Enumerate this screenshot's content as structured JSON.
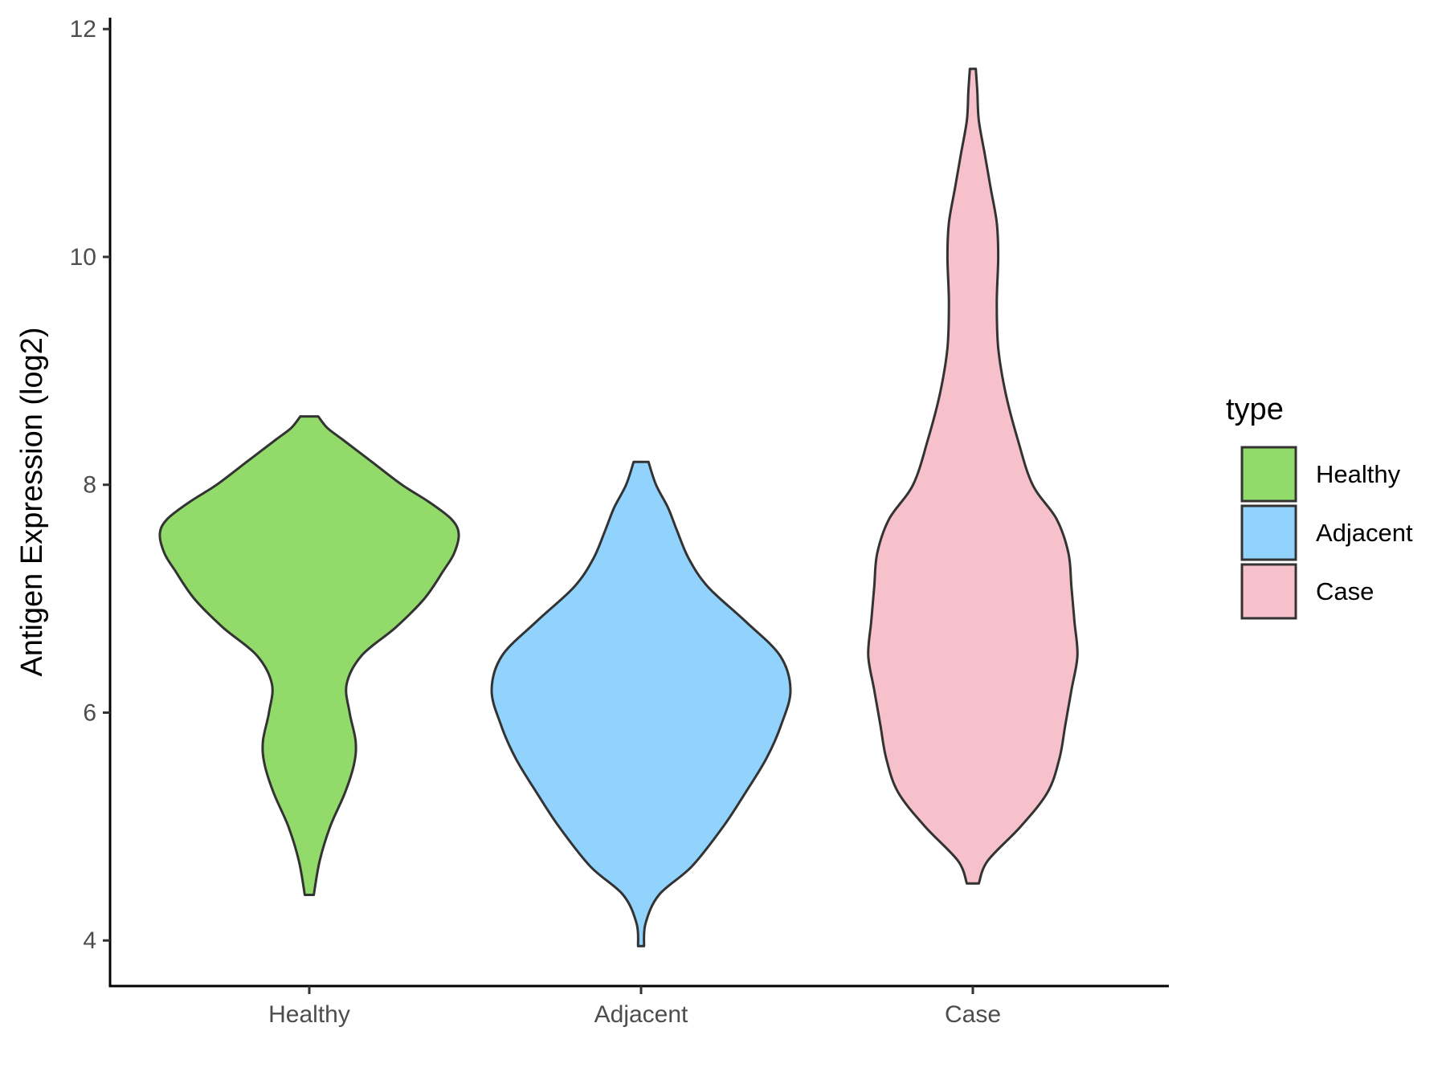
{
  "chart_data": {
    "type": "violin",
    "ylabel": "Antigen Expression (log2)",
    "xlabel": "",
    "ylim": [
      3.6,
      12.1
    ],
    "yticks": [
      4,
      6,
      8,
      10,
      12
    ],
    "categories": [
      "Healthy",
      "Adjacent",
      "Case"
    ],
    "legend": {
      "title": "type",
      "position": "right",
      "entries": [
        {
          "label": "Healthy",
          "color": "#92db6a"
        },
        {
          "label": "Adjacent",
          "color": "#91d3fd"
        },
        {
          "label": "Case",
          "color": "#f7c1cc"
        }
      ]
    },
    "grid": false,
    "series": [
      {
        "name": "Healthy",
        "color": "#92db6a",
        "min": 4.4,
        "max": 8.6,
        "density": [
          [
            4.4,
            0.03
          ],
          [
            4.7,
            0.07
          ],
          [
            5.0,
            0.14
          ],
          [
            5.3,
            0.24
          ],
          [
            5.55,
            0.3
          ],
          [
            5.75,
            0.31
          ],
          [
            6.0,
            0.27
          ],
          [
            6.25,
            0.25
          ],
          [
            6.5,
            0.35
          ],
          [
            6.75,
            0.58
          ],
          [
            7.0,
            0.77
          ],
          [
            7.25,
            0.9
          ],
          [
            7.4,
            0.97
          ],
          [
            7.57,
            1.0
          ],
          [
            7.7,
            0.95
          ],
          [
            7.85,
            0.8
          ],
          [
            8.0,
            0.62
          ],
          [
            8.2,
            0.42
          ],
          [
            8.4,
            0.22
          ],
          [
            8.5,
            0.12
          ],
          [
            8.6,
            0.06
          ]
        ]
      },
      {
        "name": "Adjacent",
        "color": "#91d3fd",
        "min": 3.95,
        "max": 8.2,
        "density": [
          [
            3.95,
            0.02
          ],
          [
            4.15,
            0.03
          ],
          [
            4.4,
            0.12
          ],
          [
            4.65,
            0.34
          ],
          [
            5.0,
            0.55
          ],
          [
            5.3,
            0.7
          ],
          [
            5.6,
            0.84
          ],
          [
            5.9,
            0.94
          ],
          [
            6.2,
            1.0
          ],
          [
            6.5,
            0.93
          ],
          [
            6.8,
            0.7
          ],
          [
            7.1,
            0.45
          ],
          [
            7.35,
            0.32
          ],
          [
            7.6,
            0.24
          ],
          [
            7.8,
            0.18
          ],
          [
            8.0,
            0.1
          ],
          [
            8.2,
            0.05
          ]
        ]
      },
      {
        "name": "Case",
        "color": "#f7c1cc",
        "min": 4.5,
        "max": 11.65,
        "density": [
          [
            4.5,
            0.04
          ],
          [
            4.7,
            0.1
          ],
          [
            5.0,
            0.32
          ],
          [
            5.3,
            0.5
          ],
          [
            5.6,
            0.58
          ],
          [
            5.9,
            0.62
          ],
          [
            6.2,
            0.66
          ],
          [
            6.5,
            0.7
          ],
          [
            6.8,
            0.68
          ],
          [
            7.1,
            0.66
          ],
          [
            7.4,
            0.64
          ],
          [
            7.7,
            0.56
          ],
          [
            8.0,
            0.4
          ],
          [
            8.4,
            0.3
          ],
          [
            8.8,
            0.22
          ],
          [
            9.2,
            0.17
          ],
          [
            9.6,
            0.16
          ],
          [
            10.0,
            0.17
          ],
          [
            10.3,
            0.16
          ],
          [
            10.6,
            0.12
          ],
          [
            10.9,
            0.08
          ],
          [
            11.2,
            0.04
          ],
          [
            11.45,
            0.03
          ],
          [
            11.65,
            0.02
          ]
        ]
      }
    ]
  }
}
